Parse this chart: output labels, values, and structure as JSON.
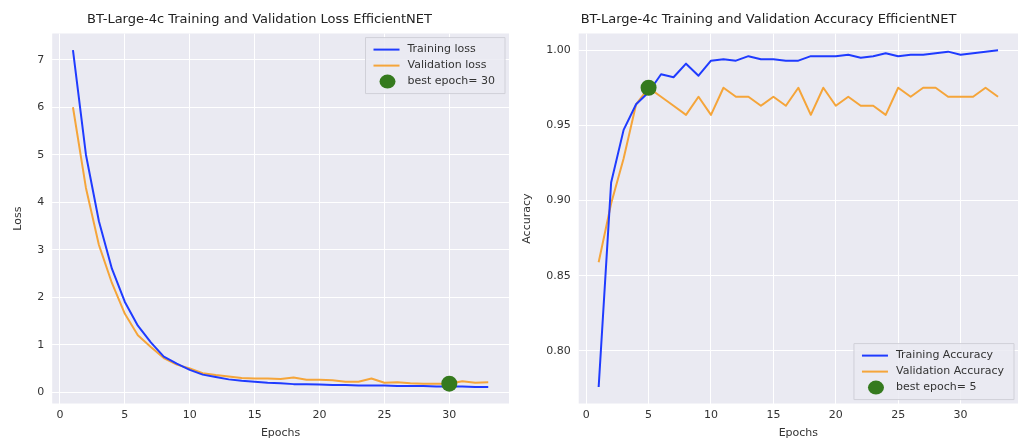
{
  "chart_data": [
    {
      "type": "line",
      "title": "BT-Large-4c Training and Validation Loss EfficientNET",
      "xlabel": "Epochs",
      "ylabel": "Loss",
      "x": [
        1,
        2,
        3,
        4,
        5,
        6,
        7,
        8,
        9,
        10,
        11,
        12,
        13,
        14,
        15,
        16,
        17,
        18,
        19,
        20,
        21,
        22,
        23,
        24,
        25,
        26,
        27,
        28,
        29,
        30,
        31,
        32,
        33
      ],
      "xlim": [
        -0.6,
        34.6
      ],
      "xticks": [
        0,
        5,
        10,
        15,
        20,
        25,
        30
      ],
      "ylim": [
        -0.24,
        7.55
      ],
      "yticks": [
        0,
        1,
        2,
        3,
        4,
        5,
        6,
        7
      ],
      "grid": true,
      "legend": "top right",
      "marker": "none",
      "series": [
        {
          "name": "Training loss",
          "color": "#1f3bff",
          "values": [
            7.2,
            5.0,
            3.6,
            2.6,
            1.9,
            1.4,
            1.05,
            0.75,
            0.6,
            0.47,
            0.37,
            0.32,
            0.27,
            0.24,
            0.22,
            0.2,
            0.19,
            0.17,
            0.17,
            0.16,
            0.15,
            0.15,
            0.14,
            0.14,
            0.14,
            0.13,
            0.13,
            0.13,
            0.12,
            0.12,
            0.12,
            0.11,
            0.11
          ]
        },
        {
          "name": "Validation loss",
          "color": "#f5a53a",
          "values": [
            6.0,
            4.3,
            3.1,
            2.3,
            1.65,
            1.2,
            0.95,
            0.72,
            0.58,
            0.5,
            0.4,
            0.36,
            0.33,
            0.3,
            0.29,
            0.29,
            0.28,
            0.31,
            0.26,
            0.26,
            0.25,
            0.22,
            0.22,
            0.29,
            0.2,
            0.21,
            0.19,
            0.18,
            0.18,
            0.18,
            0.23,
            0.2,
            0.21
          ]
        },
        {
          "name": "best epoch= 30",
          "type": "scatter",
          "marker": "circle",
          "color": "#357a1e",
          "x": [
            30
          ],
          "values": [
            0.18
          ]
        }
      ]
    },
    {
      "type": "line",
      "title": "BT-Large-4c Training and Validation Accuracy EfficientNET",
      "xlabel": "Epochs",
      "ylabel": "Accuracy",
      "x": [
        1,
        2,
        3,
        4,
        5,
        6,
        7,
        8,
        9,
        10,
        11,
        12,
        13,
        14,
        15,
        16,
        17,
        18,
        19,
        20,
        21,
        22,
        23,
        24,
        25,
        26,
        27,
        28,
        29,
        30,
        31,
        32,
        33
      ],
      "xlim": [
        -0.6,
        34.6
      ],
      "xticks": [
        0,
        5,
        10,
        15,
        20,
        25,
        30
      ],
      "ylim": [
        0.765,
        1.011
      ],
      "yticks": [
        {
          "value": 0.8,
          "label": "0.80"
        },
        {
          "value": 0.85,
          "label": "0.85"
        },
        {
          "value": 0.9,
          "label": "0.90"
        },
        {
          "value": 0.95,
          "label": "0.95"
        },
        {
          "value": 1.0,
          "label": "1.00"
        }
      ],
      "grid": true,
      "legend": "bottom right",
      "marker": "none",
      "series": [
        {
          "name": "Training Accuracy",
          "color": "#1f3bff",
          "values": [
            0.776,
            0.912,
            0.947,
            0.964,
            0.972,
            0.984,
            0.982,
            0.991,
            0.983,
            0.993,
            0.994,
            0.993,
            0.996,
            0.994,
            0.994,
            0.993,
            0.993,
            0.996,
            0.996,
            0.996,
            0.997,
            0.995,
            0.996,
            0.998,
            0.996,
            0.997,
            0.997,
            0.998,
            0.999,
            0.997,
            0.998,
            0.999,
            1.0
          ]
        },
        {
          "name": "Validation Accuracy",
          "color": "#f5a53a",
          "values": [
            0.859,
            0.898,
            0.928,
            0.964,
            0.975,
            0.969,
            0.963,
            0.957,
            0.969,
            0.957,
            0.975,
            0.969,
            0.969,
            0.963,
            0.969,
            0.963,
            0.975,
            0.957,
            0.975,
            0.963,
            0.969,
            0.963,
            0.963,
            0.957,
            0.975,
            0.969,
            0.975,
            0.975,
            0.969,
            0.969,
            0.969,
            0.975,
            0.969
          ]
        },
        {
          "name": "best epoch= 5",
          "type": "scatter",
          "marker": "circle",
          "color": "#357a1e",
          "x": [
            5
          ],
          "values": [
            0.975
          ]
        }
      ]
    }
  ]
}
